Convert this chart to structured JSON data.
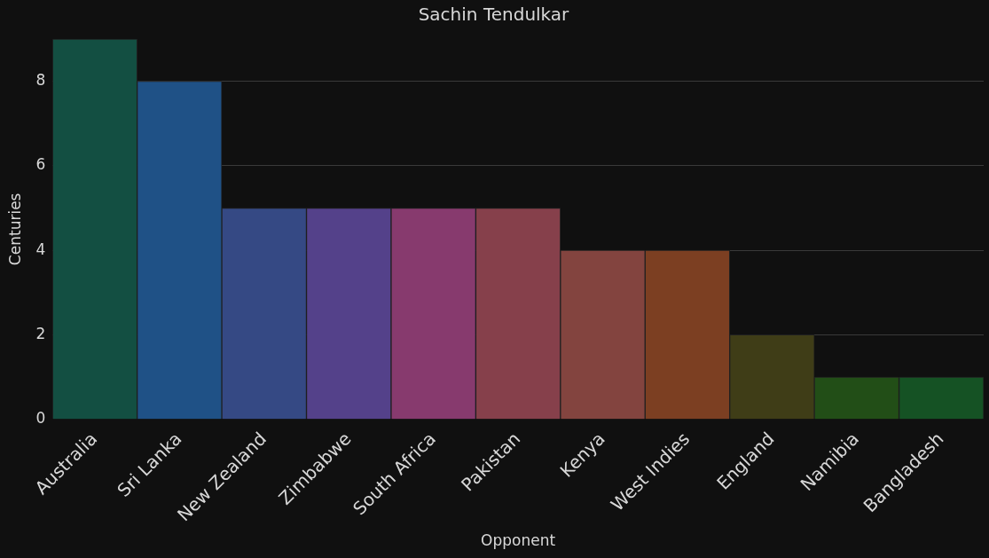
{
  "chart_data": {
    "type": "bar",
    "title": "Sachin Tendulkar",
    "xlabel": "Opponent",
    "ylabel": "Centuries",
    "categories": [
      "Australia",
      "Sri Lanka",
      "New Zealand",
      "Zimbabwe",
      "South Africa",
      "Pakistan",
      "Kenya",
      "West Indies",
      "England",
      "Namibia",
      "Bangladesh"
    ],
    "values": [
      9,
      8,
      5,
      5,
      5,
      5,
      4,
      4,
      2,
      1,
      1
    ],
    "colors": [
      "#134f42",
      "#1f5186",
      "#354984",
      "#54418a",
      "#873a6e",
      "#86404b",
      "#83443f",
      "#7c3f22",
      "#3f3d17",
      "#224e17",
      "#155224"
    ],
    "ylim": [
      0,
      9
    ],
    "yticks": [
      0,
      2,
      4,
      6,
      8
    ],
    "grid": "y"
  }
}
